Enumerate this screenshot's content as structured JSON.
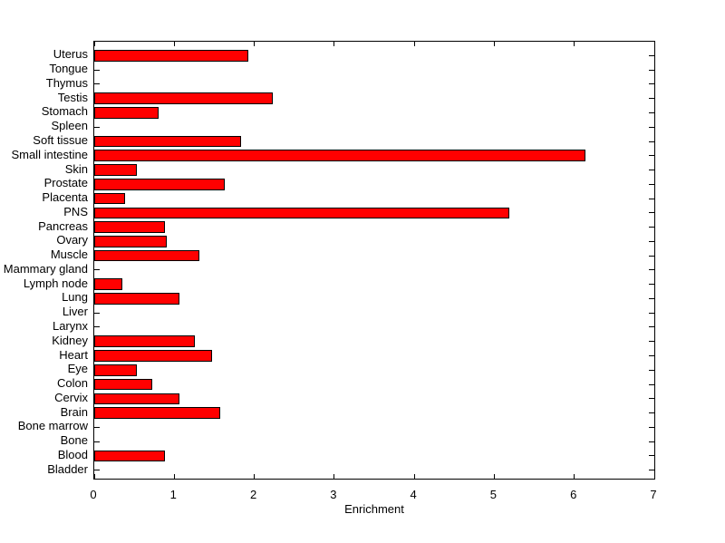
{
  "figure": {
    "background": "#FFFFFF"
  },
  "chart_data": {
    "type": "bar",
    "orientation": "horizontal",
    "title": "",
    "xlabel": "Enrichment",
    "ylabel": "",
    "xlim": [
      0,
      7
    ],
    "xticks": [
      0,
      1,
      2,
      3,
      4,
      5,
      6,
      7
    ],
    "xtick_labels": [
      "0",
      "1",
      "2",
      "3",
      "4",
      "5",
      "6",
      "7"
    ],
    "grid": false,
    "legend": null,
    "bar_color": "#FF0000",
    "edge_color": "#000000",
    "axis_color": "#000000",
    "categories_top_to_bottom": [
      "Uterus",
      "Tongue",
      "Thymus",
      "Testis",
      "Stomach",
      "Spleen",
      "Soft tissue",
      "Small intestine",
      "Skin",
      "Prostate",
      "Placenta",
      "PNS",
      "Pancreas",
      "Ovary",
      "Muscle",
      "Mammary gland",
      "Lymph node",
      "Lung",
      "Liver",
      "Larynx",
      "Kidney",
      "Heart",
      "Eye",
      "Colon",
      "Cervix",
      "Brain",
      "Bone marrow",
      "Bone",
      "Blood",
      "Bladder"
    ],
    "values": [
      1.92,
      0,
      0,
      2.23,
      0.8,
      0,
      1.83,
      6.14,
      0.53,
      1.63,
      0.38,
      5.19,
      0.88,
      0.91,
      1.31,
      0,
      0.35,
      1.06,
      0,
      0,
      1.26,
      1.47,
      0.53,
      0.73,
      1.06,
      1.58,
      0,
      0,
      0.88,
      0
    ]
  }
}
